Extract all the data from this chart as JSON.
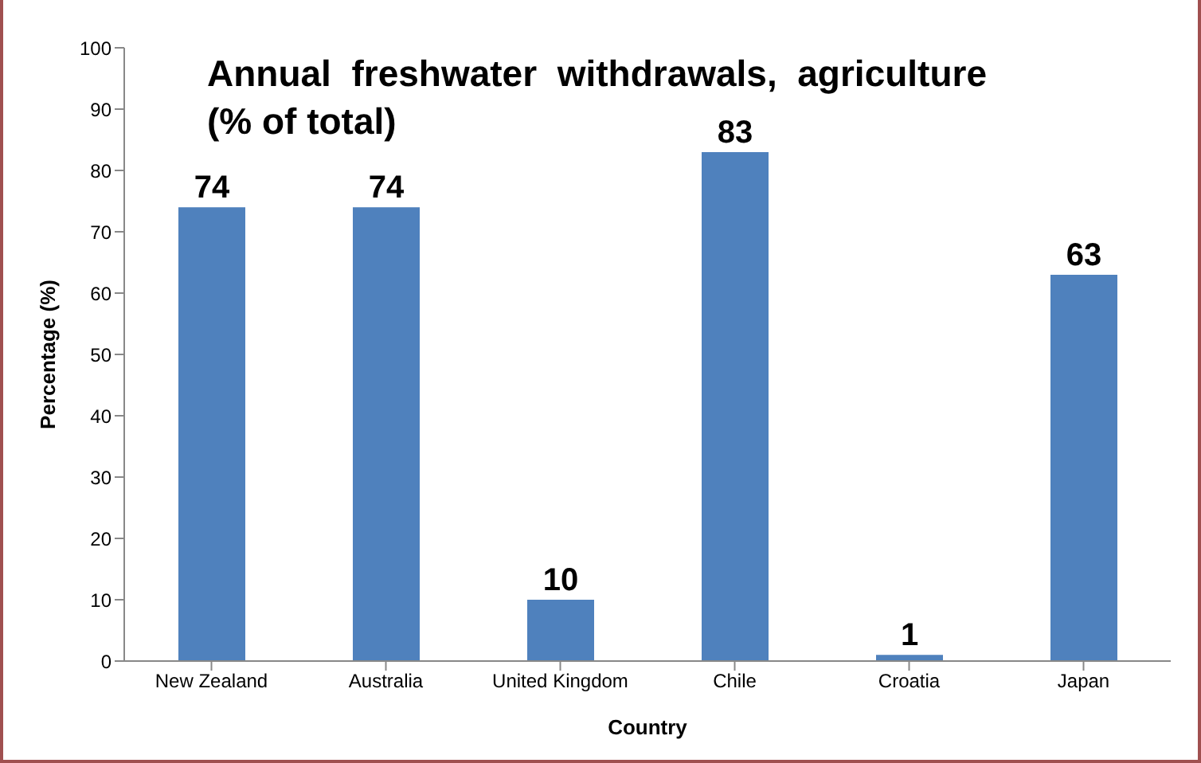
{
  "chart_data": {
    "type": "bar",
    "title": "Annual  freshwater  withdrawals,  agriculture\n(% of total)",
    "xlabel": "Country",
    "ylabel": "Percentage (%)",
    "categories": [
      "New Zealand",
      "Australia",
      "United Kingdom",
      "Chile",
      "Croatia",
      "Japan"
    ],
    "values": [
      74,
      74,
      10,
      83,
      1,
      63
    ],
    "color": "#4f81bd",
    "ylim": [
      0,
      100
    ],
    "yticks": [
      0,
      10,
      20,
      30,
      40,
      50,
      60,
      70,
      80,
      90,
      100
    ],
    "grid": false,
    "data_labels": true,
    "legend": false
  }
}
